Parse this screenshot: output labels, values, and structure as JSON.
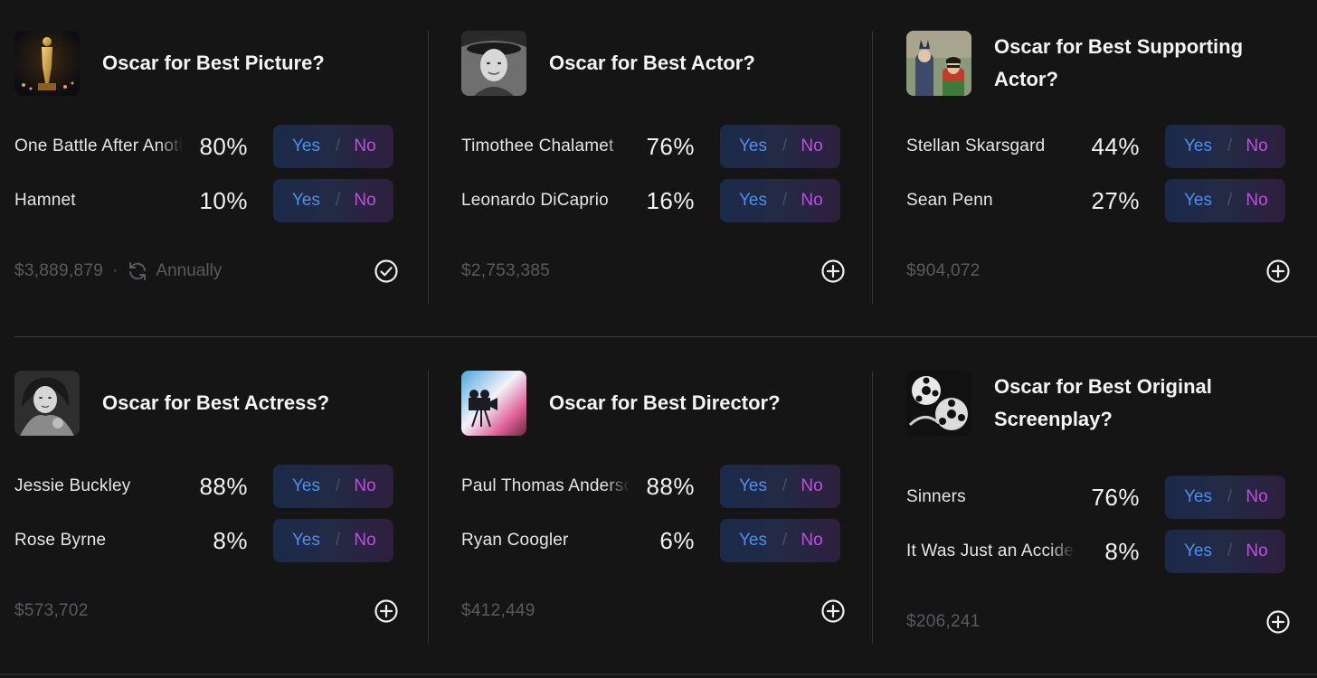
{
  "markets": [
    {
      "title": "Oscar for Best Picture?",
      "image": "oscar-statue",
      "options": [
        {
          "name": "One Battle After Another",
          "pct": "80%",
          "yes": "Yes",
          "no": "No"
        },
        {
          "name": "Hamnet",
          "pct": "10%",
          "yes": "Yes",
          "no": "No"
        }
      ],
      "volume": "$3,889,879",
      "separator": "·",
      "frequency": "Annually",
      "action_icon": "check-circle-icon"
    },
    {
      "title": "Oscar for Best Actor?",
      "image": "actor-portrait",
      "options": [
        {
          "name": "Timothee Chalamet",
          "pct": "76%",
          "yes": "Yes",
          "no": "No"
        },
        {
          "name": "Leonardo DiCaprio",
          "pct": "16%",
          "yes": "Yes",
          "no": "No"
        }
      ],
      "volume": "$2,753,385",
      "action_icon": "plus-circle-icon"
    },
    {
      "title": "Oscar for Best Supporting Actor?",
      "image": "superheroes",
      "options": [
        {
          "name": "Stellan Skarsgard",
          "pct": "44%",
          "yes": "Yes",
          "no": "No"
        },
        {
          "name": "Sean Penn",
          "pct": "27%",
          "yes": "Yes",
          "no": "No"
        }
      ],
      "volume": "$904,072",
      "action_icon": "plus-circle-icon"
    },
    {
      "title": "Oscar for Best Actress?",
      "image": "actress-portrait",
      "options": [
        {
          "name": "Jessie Buckley",
          "pct": "88%",
          "yes": "Yes",
          "no": "No"
        },
        {
          "name": "Rose Byrne",
          "pct": "8%",
          "yes": "Yes",
          "no": "No"
        }
      ],
      "volume": "$573,702",
      "action_icon": "plus-circle-icon"
    },
    {
      "title": "Oscar for Best Director?",
      "image": "film-camera",
      "options": [
        {
          "name": "Paul Thomas Anderson",
          "pct": "88%",
          "yes": "Yes",
          "no": "No"
        },
        {
          "name": "Ryan Coogler",
          "pct": "6%",
          "yes": "Yes",
          "no": "No"
        }
      ],
      "volume": "$412,449",
      "action_icon": "plus-circle-icon"
    },
    {
      "title": "Oscar for Best Original Screenplay?",
      "image": "film-reels",
      "options": [
        {
          "name": "Sinners",
          "pct": "76%",
          "yes": "Yes",
          "no": "No"
        },
        {
          "name": "It Was Just an Accident",
          "pct": "8%",
          "yes": "Yes",
          "no": "No"
        }
      ],
      "volume": "$206,241",
      "action_icon": "plus-circle-icon"
    }
  ]
}
